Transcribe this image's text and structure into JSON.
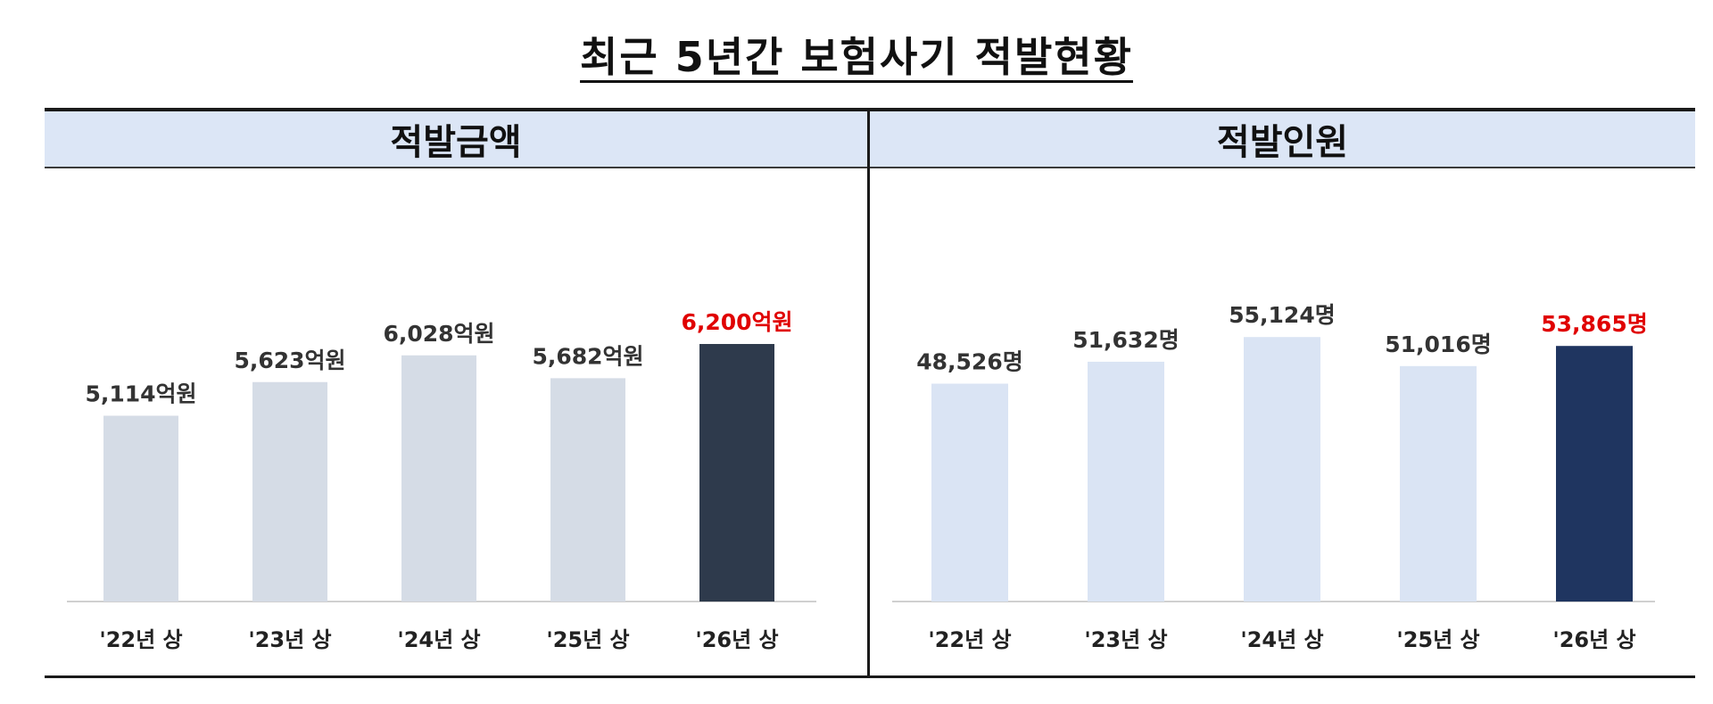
{
  "title": "최근 5년간 보험사기 적발현황",
  "chart_data": [
    {
      "type": "bar",
      "title": "적발금액",
      "categories": [
        "'22년 상",
        "'23년 상",
        "'24년 상",
        "'25년 상",
        "'26년 상"
      ],
      "values": [
        5114,
        5623,
        6028,
        5682,
        6200
      ],
      "value_labels": [
        "5,114억원",
        "5,623억원",
        "6,028억원",
        "5,682억원",
        "6,200억원"
      ],
      "unit": "억원",
      "colors": {
        "bar": "#d5dce6",
        "highlight_bar": "#2e3a4c",
        "label": "#333333",
        "highlight_label": "#e00000"
      },
      "highlight_index": 4
    },
    {
      "type": "bar",
      "title": "적발인원",
      "categories": [
        "'22년 상",
        "'23년 상",
        "'24년 상",
        "'25년 상",
        "'26년 상"
      ],
      "values": [
        48526,
        51632,
        55124,
        51016,
        53865
      ],
      "value_labels": [
        "48,526명",
        "51,632명",
        "55,124명",
        "51,016명",
        "53,865명"
      ],
      "unit": "명",
      "colors": {
        "bar": "#dae4f4",
        "highlight_bar": "#1f3560",
        "label": "#333333",
        "highlight_label": "#e00000"
      },
      "highlight_index": 4
    }
  ]
}
